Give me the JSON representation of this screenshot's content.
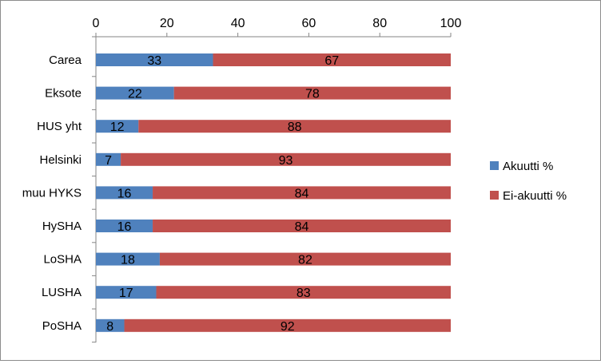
{
  "chart_data": {
    "type": "bar",
    "orientation": "horizontal",
    "stacked": true,
    "categories": [
      "Carea",
      "Eksote",
      "HUS yht",
      "Helsinki",
      "muu HYKS",
      "HySHA",
      "LoSHA",
      "LUSHA",
      "PoSHA"
    ],
    "series": [
      {
        "name": "Akuutti  %",
        "values": [
          33,
          22,
          12,
          7,
          16,
          16,
          18,
          17,
          8
        ],
        "color": "#4f81bd"
      },
      {
        "name": "Ei-akuutti %",
        "values": [
          67,
          78,
          88,
          93,
          84,
          84,
          82,
          83,
          92
        ],
        "color": "#c0504d"
      }
    ],
    "x_ticks": [
      "0",
      "20",
      "40",
      "60",
      "80",
      "100"
    ],
    "xlim": [
      0,
      100
    ],
    "axis_position": "top",
    "grid": false,
    "legend_position": "right"
  }
}
